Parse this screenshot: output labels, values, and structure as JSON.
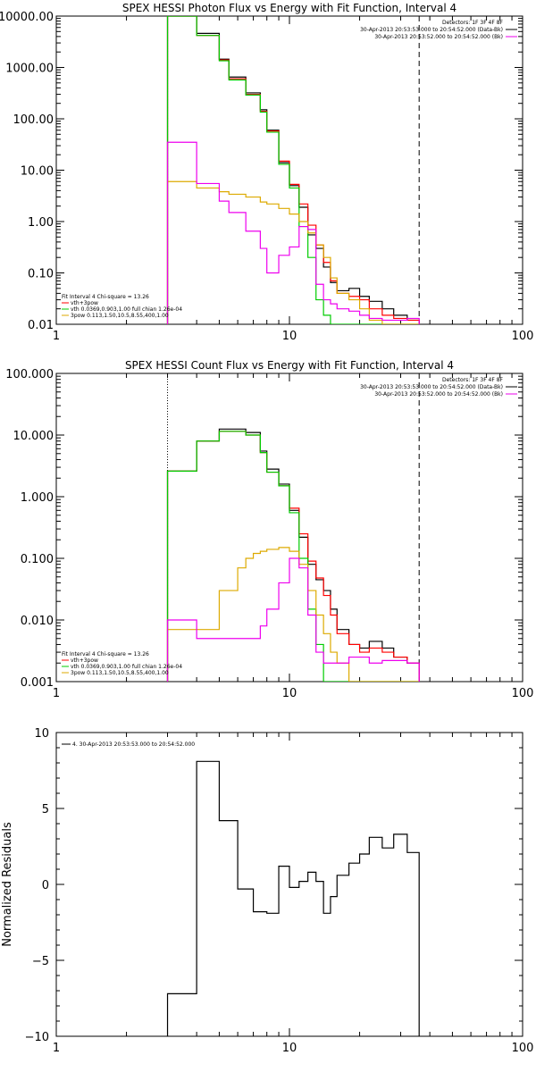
{
  "chart_data": [
    {
      "type": "line",
      "title": "SPEX HESSI Photon Flux vs Energy with Fit Function, Interval 4",
      "xscale": "log",
      "yscale": "log",
      "xlim": [
        1,
        100
      ],
      "ylim": [
        0.01,
        10000
      ],
      "x_ticks": [
        "1",
        "10",
        "100"
      ],
      "y_ticks": [
        "0.01",
        "0.10",
        "1.00",
        "10.00",
        "100.00",
        "1000.00",
        "10000.00"
      ],
      "x_edges": [
        3,
        3.5,
        4,
        4.5,
        5,
        5.5,
        6,
        6.5,
        7,
        7.5,
        8,
        8.5,
        9,
        9.5,
        10,
        11,
        12,
        13,
        14,
        15,
        16,
        18,
        20,
        22,
        25,
        28,
        32,
        36
      ],
      "vlines": [
        {
          "x": 3,
          "style": "dotted",
          "color": "#000000"
        },
        {
          "x": 36,
          "style": "dashed",
          "color": "#000000"
        }
      ],
      "series": [
        {
          "color": "#000000",
          "values": [
            10000,
            10000,
            4600,
            4600,
            1450,
            650,
            650,
            320,
            320,
            150,
            60,
            60,
            14,
            14,
            5,
            1.9,
            0.55,
            0.3,
            0.13,
            0.065,
            0.045,
            0.05,
            0.035,
            0.028,
            0.02,
            0.015,
            0.012
          ]
        },
        {
          "color": "#ff0000",
          "values": [
            10000,
            10000,
            4200,
            4200,
            1400,
            600,
            600,
            300,
            300,
            140,
            58,
            58,
            15,
            15,
            5.3,
            2.2,
            0.85,
            0.35,
            0.16,
            0.07,
            0.04,
            0.035,
            0.03,
            0.02,
            0.015,
            0.013,
            0.012
          ]
        },
        {
          "color": "#00cc00",
          "values": [
            10000,
            10000,
            4200,
            4200,
            1350,
            570,
            570,
            290,
            290,
            135,
            55,
            55,
            13,
            13,
            4.5,
            0.8,
            0.2,
            0.03,
            0.015,
            0.01,
            0.01,
            0.01,
            0.01,
            0.01,
            0.01,
            0.01,
            0.01
          ]
        },
        {
          "color": "#ddaa00",
          "values": [
            6,
            6,
            4.5,
            4.5,
            3.8,
            3.4,
            3.4,
            3,
            3,
            2.4,
            2.2,
            2.2,
            1.8,
            1.8,
            1.4,
            1,
            0.6,
            0.35,
            0.2,
            0.08,
            0.04,
            0.03,
            0.02,
            0.012,
            0.01,
            0.01,
            0.01
          ]
        },
        {
          "color": "#ee00ee",
          "values": [
            35,
            35,
            5.5,
            5.5,
            2.5,
            1.5,
            1.5,
            0.65,
            0.65,
            0.3,
            0.1,
            0.1,
            0.22,
            0.22,
            0.32,
            0.8,
            0.7,
            0.06,
            0.03,
            0.025,
            0.02,
            0.018,
            0.015,
            0.013,
            0.012,
            0.012,
            0.013
          ]
        }
      ],
      "legend_top": {
        "position": "top-right",
        "lines": [
          {
            "text": "Detectors: 1F 3F 4F 8F",
            "color": ""
          },
          {
            "text": "30-Apr-2013 20:53:53.000 to 20:54:52.000 (Data-Bk)",
            "color": "#000000"
          },
          {
            "text": "30-Apr-2013 20:53:52.000 to 20:54:52.000 (Bk)",
            "color": "#ee00ee"
          }
        ]
      },
      "legend_bottom": {
        "position": "bottom-left",
        "lines": [
          {
            "text": "Fit Interval 4    Chi-square = 13.26",
            "color": ""
          },
          {
            "text": "vth+3pow",
            "color": "#ff0000"
          },
          {
            "text": "vth 0.0369,0.903,1.00   full chian 1.26e-04",
            "color": "#00cc00"
          },
          {
            "text": "3pow 0.113,1.50,10.5,8.55,400,1.00",
            "color": "#ddaa00"
          }
        ]
      }
    },
    {
      "type": "line",
      "title": "SPEX HESSI Count Flux vs Energy with Fit Function, Interval 4",
      "xscale": "log",
      "yscale": "log",
      "xlim": [
        1,
        100
      ],
      "ylim": [
        0.001,
        100
      ],
      "x_ticks": [
        "1",
        "10",
        "100"
      ],
      "y_ticks": [
        "0.001",
        "0.010",
        "0.100",
        "1.000",
        "10.000",
        "100.000"
      ],
      "x_edges": [
        3,
        3.5,
        4,
        4.5,
        5,
        5.5,
        6,
        6.5,
        7,
        7.5,
        8,
        8.5,
        9,
        9.5,
        10,
        11,
        12,
        13,
        14,
        15,
        16,
        18,
        20,
        22,
        25,
        28,
        32,
        36
      ],
      "vlines": [
        {
          "x": 3,
          "style": "dotted",
          "color": "#000000"
        },
        {
          "x": 36,
          "style": "dashed",
          "color": "#000000"
        }
      ],
      "series": [
        {
          "color": "#000000",
          "values": [
            2.6,
            2.6,
            8,
            8,
            12.5,
            12.5,
            12.5,
            11,
            11,
            5.5,
            2.8,
            2.8,
            1.6,
            1.6,
            0.6,
            0.22,
            0.08,
            0.045,
            0.03,
            0.015,
            0.007,
            0.004,
            0.0035,
            0.0045,
            0.0035,
            0.0025,
            0.002
          ]
        },
        {
          "color": "#ff0000",
          "values": [
            2.6,
            2.6,
            8,
            8,
            11.5,
            11.5,
            11.5,
            10,
            10,
            5.2,
            2.5,
            2.5,
            1.5,
            1.5,
            0.65,
            0.25,
            0.09,
            0.048,
            0.025,
            0.012,
            0.006,
            0.004,
            0.003,
            0.0035,
            0.003,
            0.0025,
            0.002
          ]
        },
        {
          "color": "#00cc00",
          "values": [
            2.6,
            2.6,
            8,
            8,
            11.5,
            11.5,
            11.5,
            10,
            10,
            5.2,
            2.5,
            2.5,
            1.5,
            1.5,
            0.55,
            0.1,
            0.015,
            0.004,
            0.001,
            0.001,
            0.001,
            0.001,
            0.001,
            0.001,
            0.001,
            0.001,
            0.001
          ]
        },
        {
          "color": "#ddaa00",
          "values": [
            0.007,
            0.007,
            0.007,
            0.007,
            0.03,
            0.03,
            0.07,
            0.1,
            0.12,
            0.13,
            0.14,
            0.14,
            0.15,
            0.15,
            0.13,
            0.08,
            0.03,
            0.012,
            0.006,
            0.003,
            0.002,
            0.001,
            0.001,
            0.001,
            0.001,
            0.001,
            0.001
          ]
        },
        {
          "color": "#ee00ee",
          "values": [
            0.01,
            0.01,
            0.005,
            0.005,
            0.005,
            0.005,
            0.005,
            0.005,
            0.005,
            0.008,
            0.015,
            0.015,
            0.04,
            0.04,
            0.1,
            0.07,
            0.012,
            0.003,
            0.002,
            0.002,
            0.002,
            0.0025,
            0.0025,
            0.002,
            0.0022,
            0.0022,
            0.002
          ]
        }
      ],
      "legend_top": {
        "position": "top-right",
        "lines": [
          {
            "text": "Detectors: 1F 3F 4F 8F",
            "color": ""
          },
          {
            "text": "30-Apr-2013 20:53:53.000 to 20:54:52.000 (Data-Bk)",
            "color": "#000000"
          },
          {
            "text": "30-Apr-2013 20:53:52.000 to 20:54:52.000 (Bk)",
            "color": "#ee00ee"
          }
        ]
      },
      "legend_bottom": {
        "position": "bottom-left",
        "lines": [
          {
            "text": "Fit Interval 4    Chi-square = 13.26",
            "color": ""
          },
          {
            "text": "vth+3pow",
            "color": "#ff0000"
          },
          {
            "text": "vth 0.0369,0.903,1.00   full chian 1.26e-04",
            "color": "#00cc00"
          },
          {
            "text": "3pow 0.113,1.50,10.5,8.55,400,1.00",
            "color": "#ddaa00"
          }
        ]
      }
    },
    {
      "type": "line",
      "title": "",
      "xscale": "log",
      "yscale": "linear",
      "xlim": [
        1,
        100
      ],
      "ylim": [
        -10,
        10
      ],
      "ylabel": "Normalized Residuals",
      "x_ticks": [
        "1",
        "10",
        "100"
      ],
      "y_ticks": [
        "−10",
        "−5",
        "0",
        "5",
        "10"
      ],
      "y_tick_values": [
        -10,
        -5,
        0,
        5,
        10
      ],
      "x_edges": [
        3,
        3.5,
        4,
        4.5,
        5,
        5.5,
        6,
        6.5,
        7,
        7.5,
        8,
        8.5,
        9,
        9.5,
        10,
        11,
        12,
        13,
        14,
        15,
        16,
        18,
        20,
        22,
        25,
        28,
        32,
        36
      ],
      "series": [
        {
          "color": "#000000",
          "values": [
            -7.2,
            -7.2,
            8.1,
            8.1,
            4.2,
            4.2,
            -0.3,
            -0.3,
            -1.8,
            -1.8,
            -1.9,
            -1.9,
            1.2,
            1.2,
            -0.2,
            0.2,
            0.8,
            0.2,
            -1.9,
            -0.8,
            0.6,
            1.4,
            2.0,
            3.1,
            2.4,
            3.3,
            2.1
          ]
        }
      ],
      "legend_top": {
        "position": "top-left",
        "lines": [
          {
            "text": "4. 30-Apr-2013 20:53:53.000 to 20:54:52.000",
            "color": "#000000"
          }
        ]
      }
    }
  ]
}
